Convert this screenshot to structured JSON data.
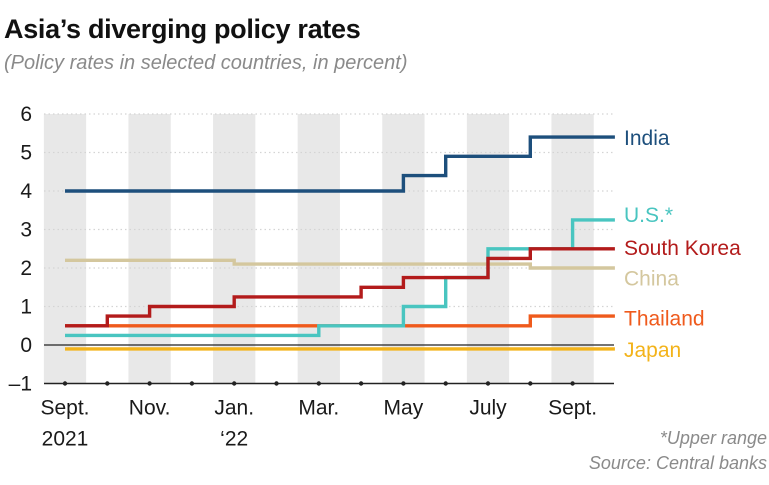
{
  "chart_data": {
    "type": "line",
    "title": "Asia’s diverging policy rates",
    "subtitle": "(Policy rates in selected countries, in percent)",
    "footnote": "*Upper range",
    "source": "Source: Central banks",
    "ylim": [
      -1,
      6
    ],
    "yticks": [
      -1,
      0,
      1,
      2,
      3,
      4,
      5,
      6
    ],
    "ytick_labels": [
      "–1",
      "0",
      "1",
      "2",
      "3",
      "4",
      "5",
      "6"
    ],
    "xlim": [
      0,
      13
    ],
    "x_ticks": [
      {
        "x": 0,
        "line1": "Sept.",
        "line2": "2021"
      },
      {
        "x": 2,
        "line1": "Nov.",
        "line2": ""
      },
      {
        "x": 4,
        "line1": "Jan.",
        "line2": "‘22"
      },
      {
        "x": 6,
        "line1": "Mar.",
        "line2": ""
      },
      {
        "x": 8,
        "line1": "May",
        "line2": ""
      },
      {
        "x": 10,
        "line1": "July",
        "line2": ""
      },
      {
        "x": 12,
        "line1": "Sept.",
        "line2": ""
      }
    ],
    "x_unit": "months since Sept. 2021",
    "series": [
      {
        "name": "India",
        "label": "India",
        "color": "#1d4f7c",
        "steps": [
          [
            0,
            4.0
          ],
          [
            8,
            4.4
          ],
          [
            9,
            4.9
          ],
          [
            11,
            5.4
          ],
          [
            13,
            5.4
          ]
        ]
      },
      {
        "name": "U.S.",
        "label": "U.S.*",
        "color": "#49c5c0",
        "steps": [
          [
            0,
            0.25
          ],
          [
            6,
            0.5
          ],
          [
            8,
            1.0
          ],
          [
            9,
            1.75
          ],
          [
            10,
            2.5
          ],
          [
            12,
            3.25
          ],
          [
            13,
            3.25
          ]
        ]
      },
      {
        "name": "South Korea",
        "label": "South Korea",
        "color": "#b31b1b",
        "steps": [
          [
            0,
            0.5
          ],
          [
            1,
            0.75
          ],
          [
            2,
            1.0
          ],
          [
            4,
            1.25
          ],
          [
            7,
            1.5
          ],
          [
            8,
            1.75
          ],
          [
            10,
            2.25
          ],
          [
            11,
            2.5
          ],
          [
            13,
            2.5
          ]
        ]
      },
      {
        "name": "China",
        "label": "China",
        "color": "#d4c79e",
        "steps": [
          [
            0,
            2.2
          ],
          [
            4,
            2.1
          ],
          [
            11,
            2.0
          ],
          [
            13,
            2.0
          ]
        ]
      },
      {
        "name": "Thailand",
        "label": "Thailand",
        "color": "#ef5a1c",
        "steps": [
          [
            0,
            0.5
          ],
          [
            11,
            0.75
          ],
          [
            13,
            0.75
          ]
        ]
      },
      {
        "name": "Japan",
        "label": "Japan",
        "color": "#f3b31a",
        "steps": [
          [
            0,
            -0.1
          ],
          [
            13,
            -0.1
          ]
        ]
      }
    ]
  }
}
